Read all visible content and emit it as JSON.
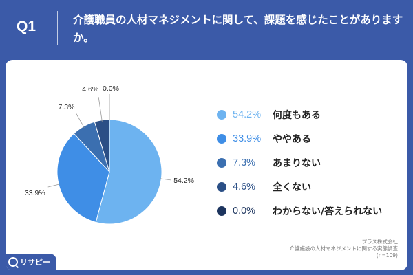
{
  "header": {
    "qnum": "Q1",
    "question": "介護職員の人材マネジメントに関して、課題を感じたことがありますか。"
  },
  "colors": {
    "background": "#3b5aa8",
    "card": "#ffffff"
  },
  "chart_data": {
    "type": "pie",
    "categories": [
      "何度もある",
      "ややある",
      "あまりない",
      "全くない",
      "わからない/答えられない"
    ],
    "values": [
      54.2,
      33.9,
      7.3,
      4.6,
      0.0
    ],
    "value_labels": [
      "54.2%",
      "33.9%",
      "7.3%",
      "4.6%",
      "0.0%"
    ],
    "colors": [
      "#6db3f0",
      "#3f8ee6",
      "#3b6fb0",
      "#2b4f86",
      "#1c345e"
    ],
    "legend_placement": "right"
  },
  "source": {
    "line1": "プラス株式会社",
    "line2": "介護施設の人材マネジメントに関する実態調査",
    "line3": "(n=109)"
  },
  "logo": {
    "text": "リサピー"
  }
}
